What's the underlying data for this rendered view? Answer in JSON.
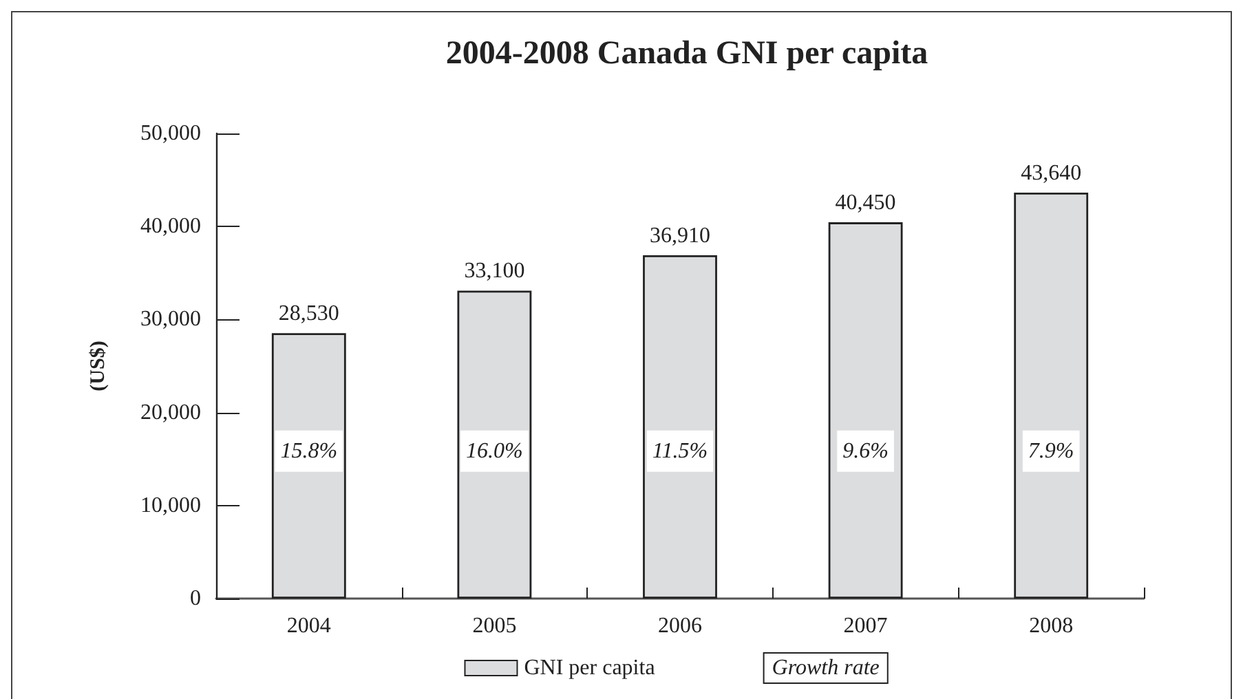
{
  "chart_data": {
    "type": "bar",
    "title": "2004-2008 Canada GNI per capita",
    "ylabel": "(US$)",
    "categories": [
      "2004",
      "2005",
      "2006",
      "2007",
      "2008"
    ],
    "series": [
      {
        "name": "GNI per capita",
        "color": "#dcdddf",
        "values": [
          28530,
          33100,
          36910,
          40450,
          43640
        ],
        "value_labels": [
          "28,530",
          "33,100",
          "36,910",
          "40,450",
          "43,640"
        ]
      }
    ],
    "annotations": [
      "15.8%",
      "16.0%",
      "11.5%",
      "9.6%",
      "7.9%",
      "Growth rate"
    ],
    "ylim": [
      0,
      50000
    ],
    "yticks": [
      0,
      {
        "value": 10000,
        "label": "10,000"
      },
      {
        "value": 20000,
        "label": "20,000"
      },
      {
        "value": 30000,
        "label": "30,000"
      },
      {
        "value": 40000,
        "label": "40,000"
      },
      {
        "value": 50000,
        "label": "50,000"
      }
    ],
    "grid": false,
    "legend": "bottom"
  }
}
